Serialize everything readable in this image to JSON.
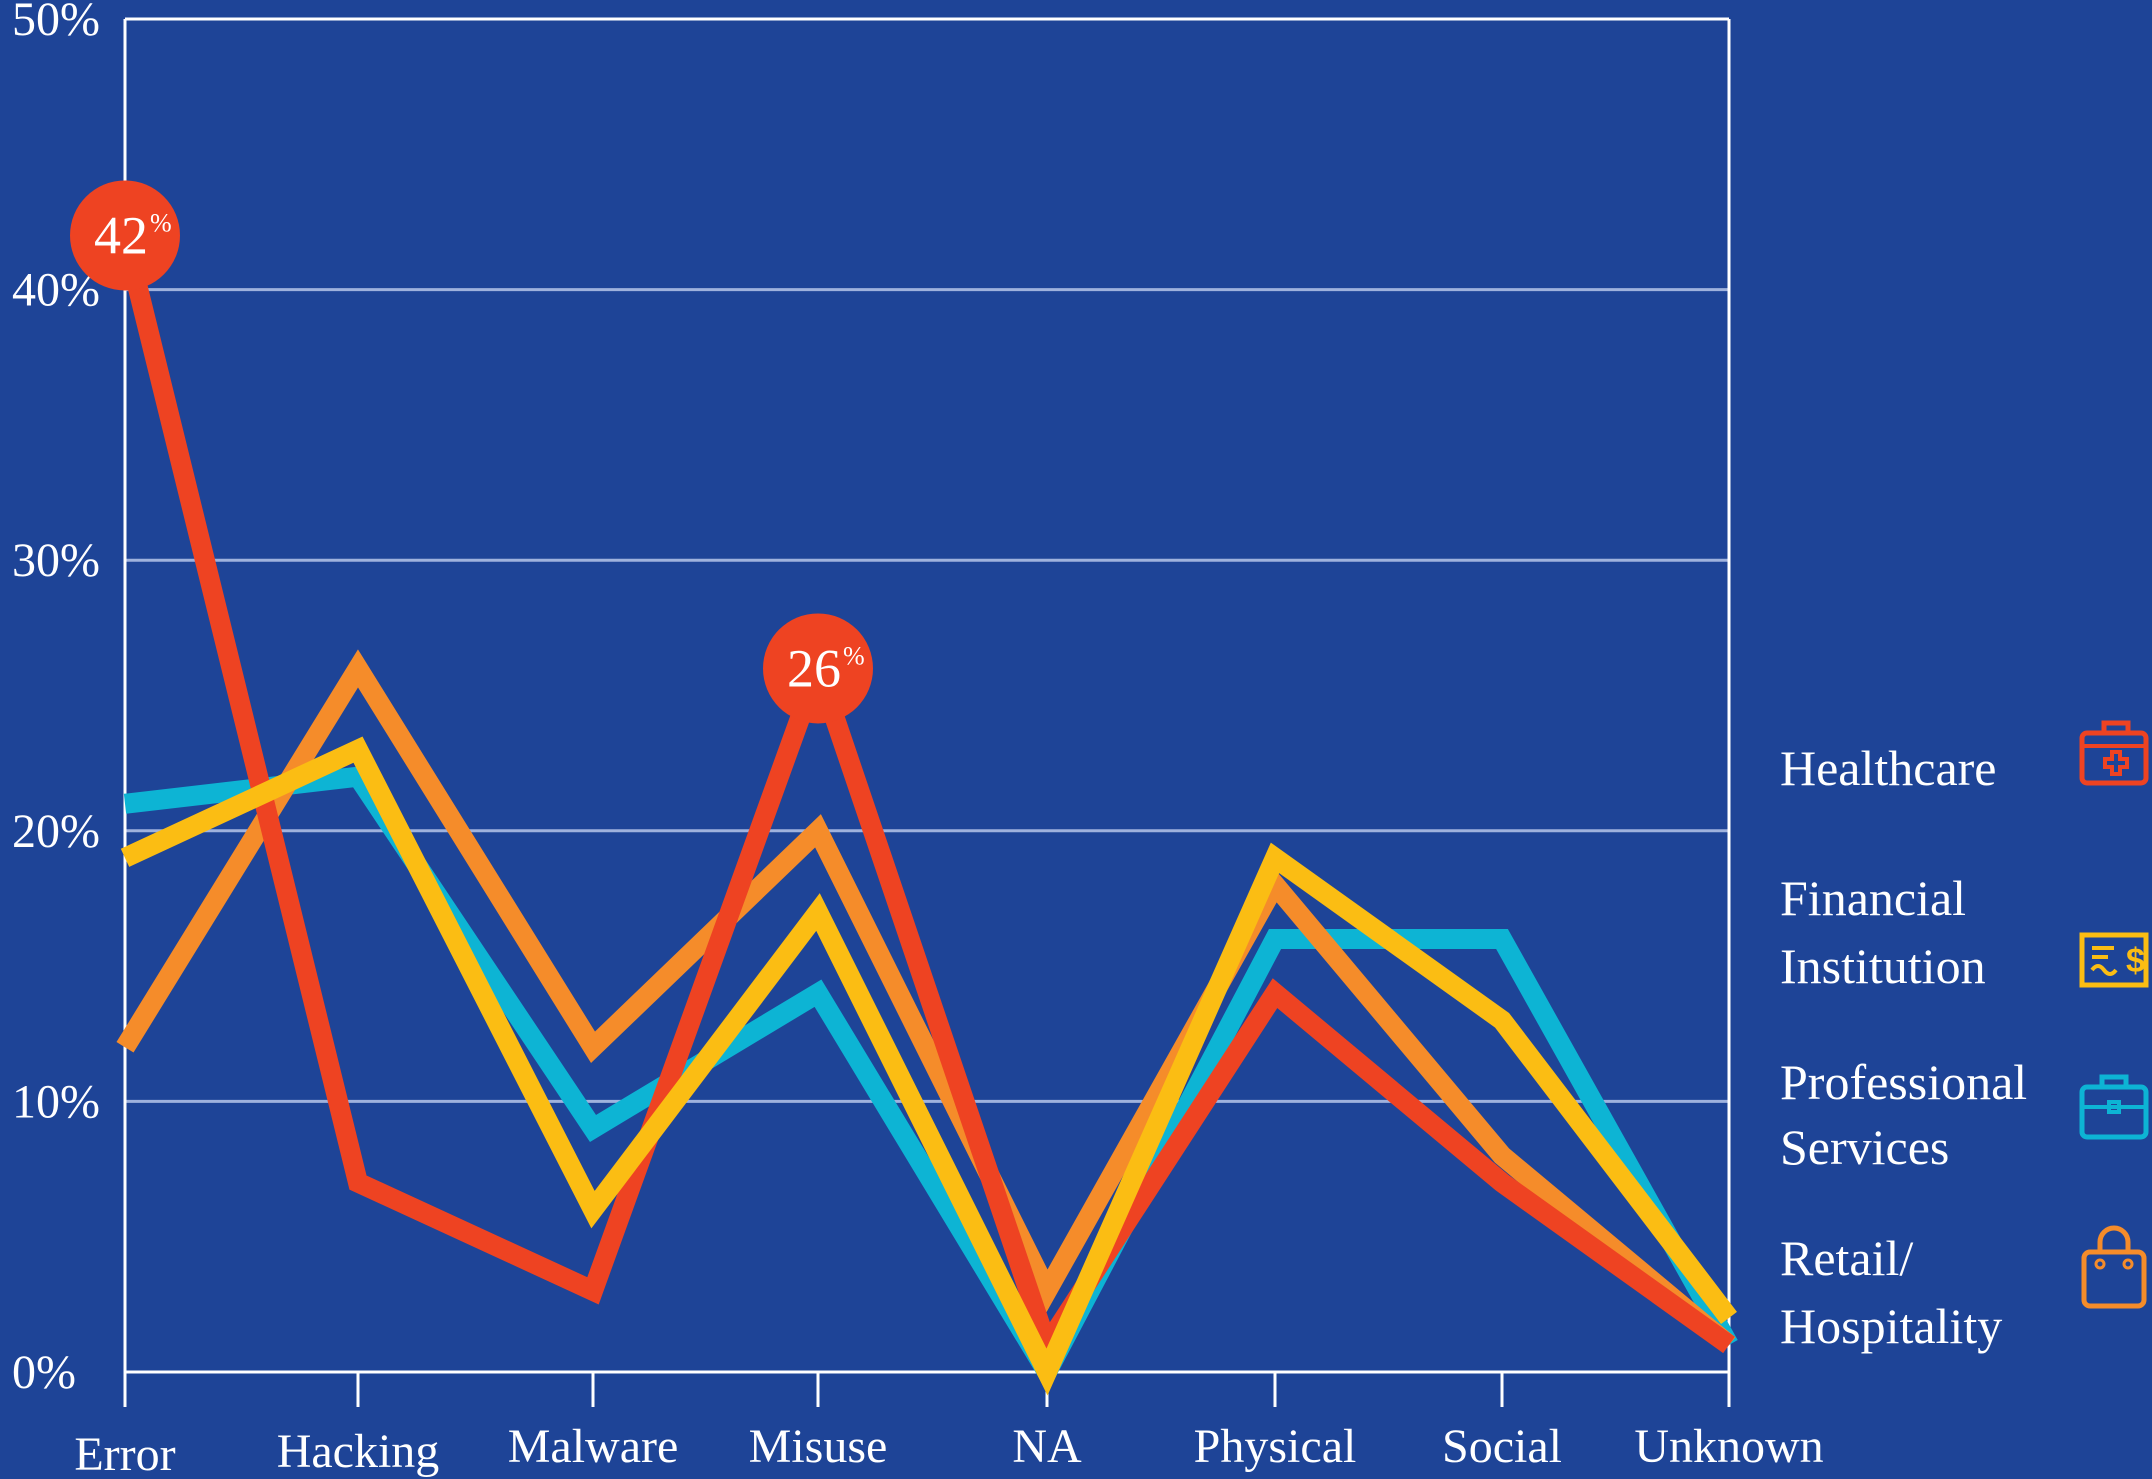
{
  "chart_data": {
    "type": "line",
    "categories": [
      "Error",
      "Hacking",
      "Malware",
      "Misuse",
      "NA",
      "Physical",
      "Social",
      "Unknown"
    ],
    "ylim": [
      0,
      50
    ],
    "yticks": [
      0,
      10,
      20,
      30,
      40,
      50
    ],
    "ytick_labels": [
      "0%",
      "10%",
      "20%",
      "30%",
      "40%",
      "50%"
    ],
    "grid": true,
    "legend_position": "right",
    "series": [
      {
        "name": "Professional Services",
        "color": "#0db4d4",
        "icon": "briefcase-icon",
        "values": [
          21,
          22,
          9,
          14,
          0,
          16,
          16,
          1
        ]
      },
      {
        "name": "Retail/ Hospitality",
        "color": "#f58c2a",
        "icon": "shopping-bag-icon",
        "values": [
          12,
          26,
          12,
          20,
          3,
          18,
          8,
          1
        ]
      },
      {
        "name": "Healthcare",
        "color": "#ee4322",
        "icon": "medical-kit-icon",
        "values": [
          42,
          7,
          3,
          26,
          1,
          14,
          7,
          1
        ]
      },
      {
        "name": "Financial Institution",
        "color": "#fbbd13",
        "icon": "cheque-icon",
        "values": [
          19,
          23,
          6,
          17,
          0,
          19,
          13,
          2
        ]
      }
    ],
    "annotations": [
      {
        "series": "Healthcare",
        "category": "Error",
        "text": "42",
        "suffix": "%"
      },
      {
        "series": "Healthcare",
        "category": "Misuse",
        "text": "26",
        "suffix": "%"
      }
    ]
  },
  "legend": [
    {
      "lines": [
        "Healthcare"
      ],
      "color": "#ee4322",
      "icon": "medical-kit-icon"
    },
    {
      "lines": [
        "Financial",
        "Institution"
      ],
      "color": "#fbbd13",
      "icon": "cheque-icon"
    },
    {
      "lines": [
        "Professional",
        "Services"
      ],
      "color": "#0db4d4",
      "icon": "briefcase-icon"
    },
    {
      "lines": [
        "Retail/",
        "Hospitality"
      ],
      "color": "#f58c2a",
      "icon": "shopping-bag-icon"
    }
  ],
  "colors": {
    "background": "#1e4497",
    "axis": "#ffffff",
    "grid": "#9fb2dd"
  }
}
